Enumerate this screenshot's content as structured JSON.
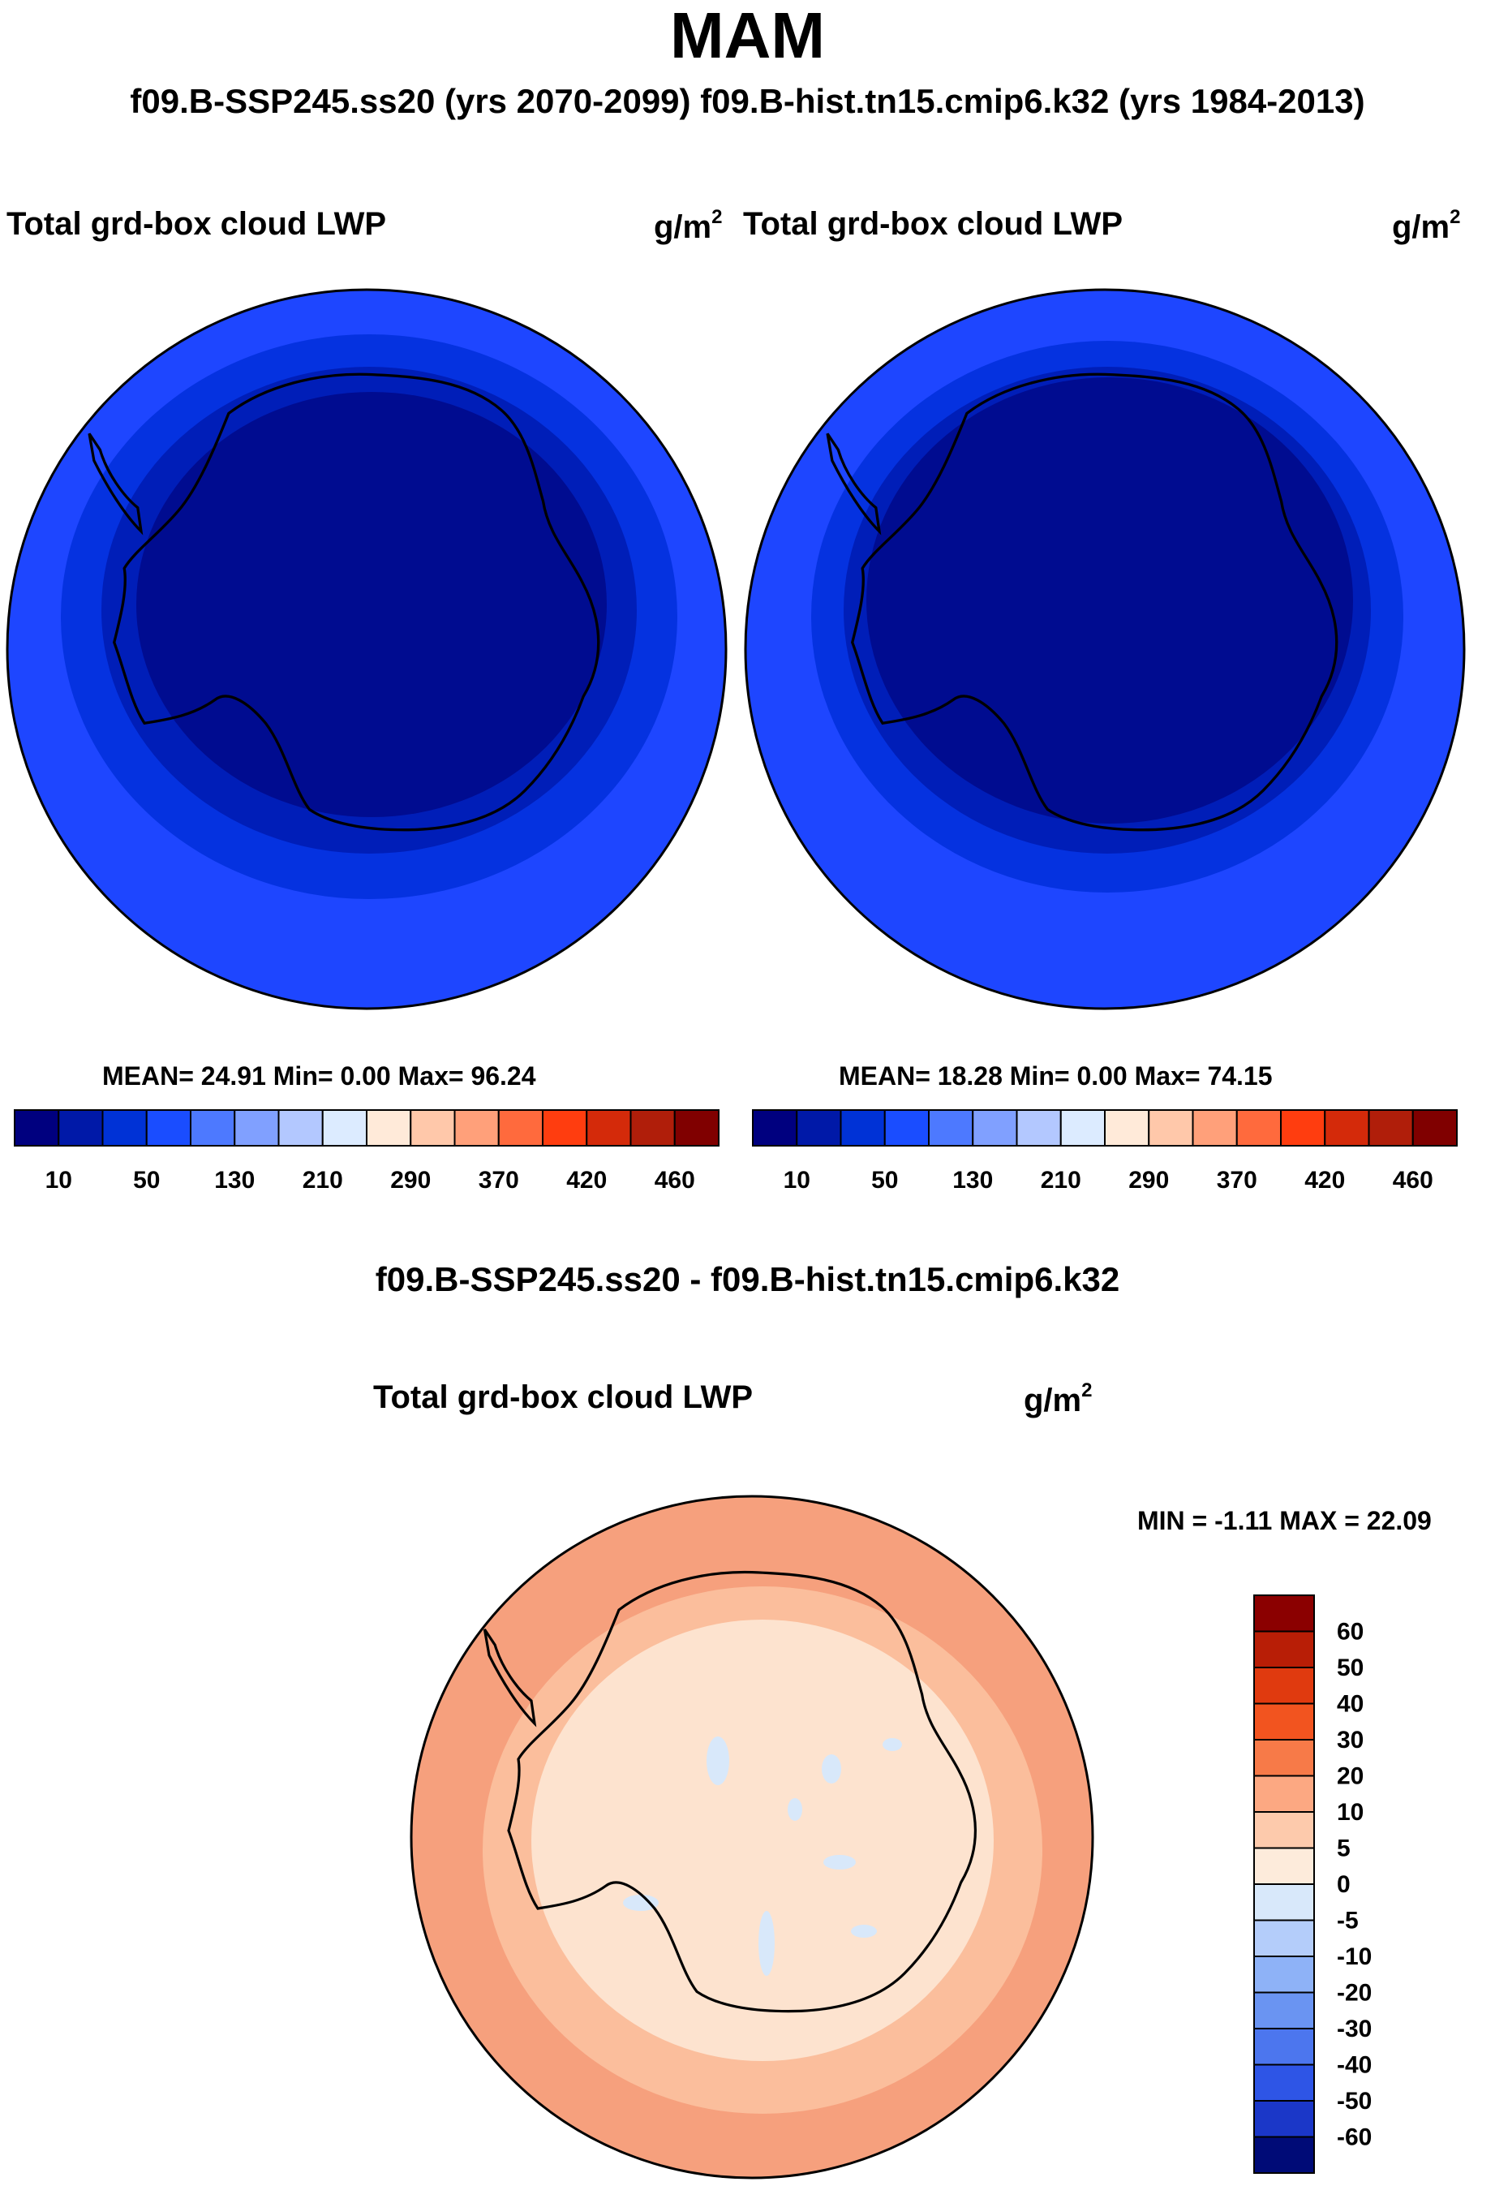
{
  "figure": {
    "title": "MAM",
    "subtitle": "f09.B-SSP245.ss20 (yrs 2070-2099)  f09.B-hist.tn15.cmip6.k32 (yrs 1984-2013)",
    "diff_title": "f09.B-SSP245.ss20 - f09.B-hist.tn15.cmip6.k32"
  },
  "panels": [
    {
      "id": "ssp245",
      "variable": "Total grd-box cloud LWP",
      "unit_base": "g/m",
      "unit_exp": "2",
      "stats": "MEAN=  24.91  Min=    0.00  Max=  96.24",
      "palette": [
        "#00007f",
        "#0019a8",
        "#0032d6",
        "#1a4dff",
        "#4d79ff",
        "#80a0ff",
        "#b3c8ff",
        "#dcebff",
        "#ffead9",
        "#ffc8aa",
        "#ffa07a",
        "#ff6a3d",
        "#ff3d0f",
        "#d42a0a",
        "#b01e0a",
        "#800000"
      ],
      "colorbar_labels": [
        "10",
        "50",
        "130",
        "210",
        "290",
        "370",
        "420",
        "460"
      ],
      "ring_colors": [
        "#1e46ff",
        "#0532e0",
        "#001eb8",
        "#000c90"
      ]
    },
    {
      "id": "hist",
      "variable": "Total grd-box cloud LWP",
      "unit_base": "g/m",
      "unit_exp": "2",
      "stats": "MEAN=  18.28  Min=    0.00  Max=  74.15",
      "palette": [
        "#00007f",
        "#0019a8",
        "#0032d6",
        "#1a4dff",
        "#4d79ff",
        "#80a0ff",
        "#b3c8ff",
        "#dcebff",
        "#ffead9",
        "#ffc8aa",
        "#ffa07a",
        "#ff6a3d",
        "#ff3d0f",
        "#d42a0a",
        "#b01e0a",
        "#800000"
      ],
      "colorbar_labels": [
        "10",
        "50",
        "130",
        "210",
        "290",
        "370",
        "420",
        "460"
      ],
      "ring_colors": [
        "#1e46ff",
        "#0532e0",
        "#001eb8",
        "#000c90"
      ]
    }
  ],
  "difference": {
    "variable": "Total grd-box cloud LWP",
    "unit_base": "g/m",
    "unit_exp": "2",
    "stats": "MIN =  -1.11 MAX =  22.09",
    "colorbar_labels": [
      "60",
      "50",
      "40",
      "30",
      "20",
      "10",
      "5",
      "0",
      "-5",
      "-10",
      "-20",
      "-30",
      "-40",
      "-50",
      "-60"
    ],
    "palette": [
      "#8b0000",
      "#b81e06",
      "#e03a0f",
      "#f2541f",
      "#f77a48",
      "#fca882",
      "#fdcaac",
      "#fdebdb",
      "#d8e8fa",
      "#b4cdfa",
      "#8eb2f7",
      "#6a94f2",
      "#4c76ee",
      "#2e55e6",
      "#1b37c8",
      "#000b77"
    ],
    "ring_colors": [
      "#f6a07d",
      "#fbbe9c",
      "#fde3cf"
    ],
    "negative_color": "#d8e8fa"
  }
}
